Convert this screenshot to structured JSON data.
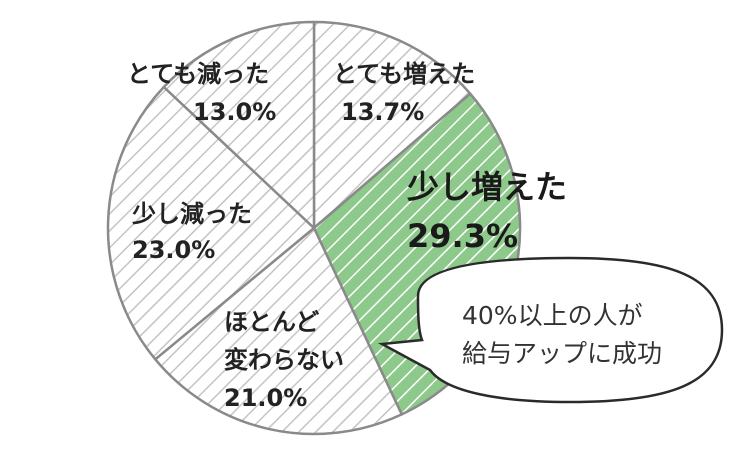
{
  "chart_data": {
    "type": "pie",
    "slices": [
      {
        "label": "とても増えた",
        "value": 13.7,
        "value_label": "13.7%",
        "highlight": false
      },
      {
        "label": "少し増えた",
        "value": 29.3,
        "value_label": "29.3%",
        "highlight": true
      },
      {
        "label": "ほとんど変わらない",
        "value": 21.0,
        "value_label": "21.0%",
        "highlight": false
      },
      {
        "label": "少し減った",
        "value": 23.0,
        "value_label": "23.0%",
        "highlight": false
      },
      {
        "label": "とても減った",
        "value": 13.0,
        "value_label": "13.0%",
        "highlight": false
      }
    ],
    "start": "top",
    "direction": "clockwise",
    "colors": {
      "hatch": "#c4c4c4",
      "highlight_fill": "#8dc98a",
      "slice_border": "#8a8a8a",
      "background": "#ffffff"
    }
  },
  "callout": {
    "line1": "40%以上の人が",
    "line2": "給与アップに成功"
  }
}
